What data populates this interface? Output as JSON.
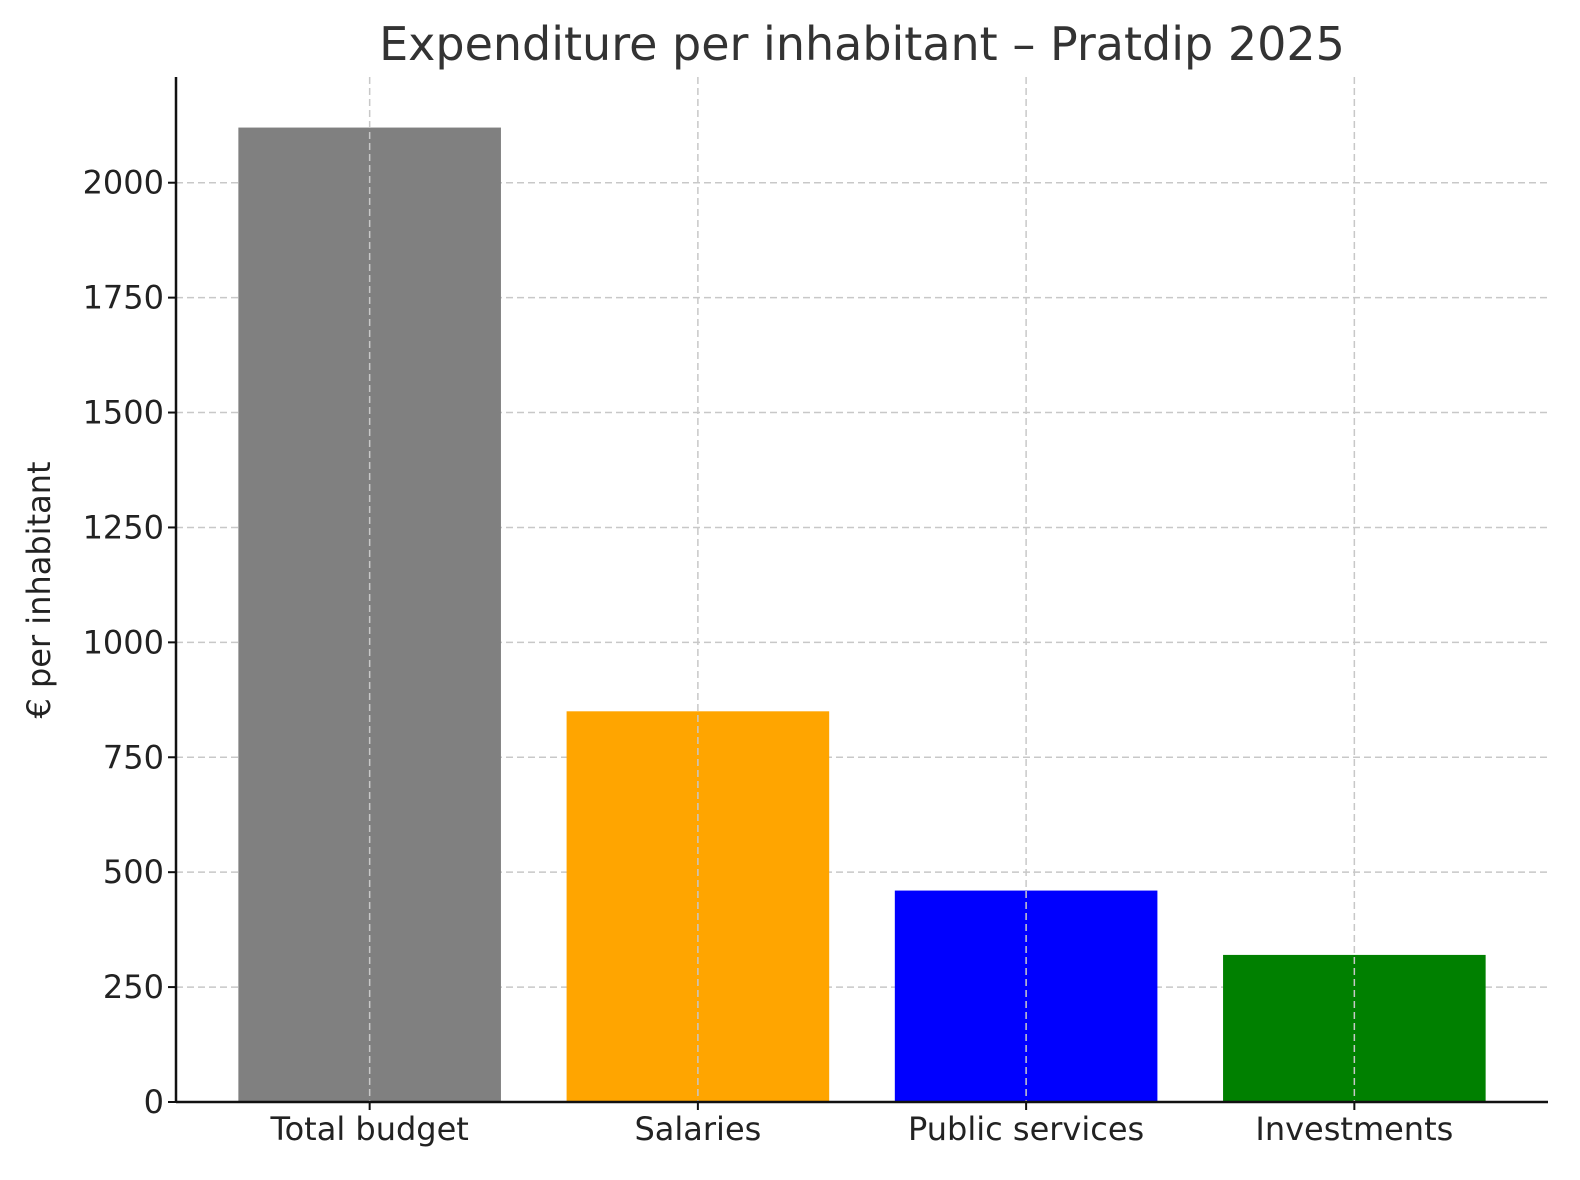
{
  "chart_data": {
    "type": "bar",
    "title": "Expenditure per inhabitant – Pratdip 2025",
    "xlabel": "",
    "ylabel": "€ per inhabitant",
    "categories": [
      "Total budget",
      "Salaries",
      "Public services",
      "Investments"
    ],
    "values": [
      2120,
      850,
      460,
      320
    ],
    "colors": [
      "#808080",
      "#ffa500",
      "#0000ff",
      "#008000"
    ],
    "ylim": [
      0,
      2230
    ],
    "yticks": [
      0,
      250,
      500,
      750,
      1000,
      1250,
      1500,
      1750,
      2000
    ],
    "grid": true,
    "legend": "none"
  }
}
